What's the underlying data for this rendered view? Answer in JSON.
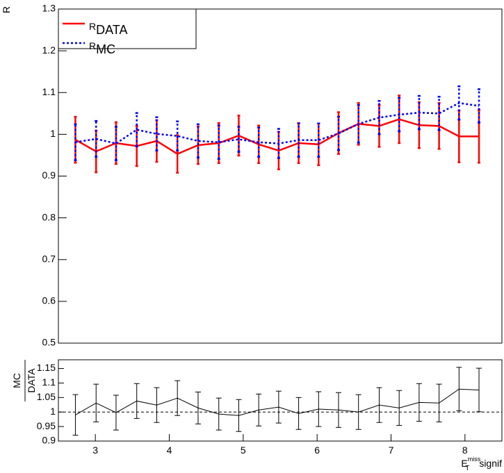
{
  "chart_data": [
    {
      "type": "line",
      "ylabel": "R",
      "x": [
        2.73,
        3.01,
        3.28,
        3.56,
        3.83,
        4.11,
        4.39,
        4.67,
        4.94,
        5.21,
        5.48,
        5.75,
        6.02,
        6.29,
        6.56,
        6.84,
        7.11,
        7.38,
        7.65,
        7.92,
        8.19
      ],
      "series": [
        {
          "name": "R",
          "name_subscript": "DATA",
          "color": "#ff0000",
          "dashed": false,
          "values": [
            0.987,
            0.959,
            0.979,
            0.972,
            0.984,
            0.953,
            0.974,
            0.979,
            0.997,
            0.976,
            0.961,
            0.979,
            0.976,
            1.003,
            1.025,
            1.02,
            1.036,
            1.022,
            1.02,
            0.995,
            0.995
          ],
          "errors": [
            0.055,
            0.05,
            0.05,
            0.048,
            0.05,
            0.045,
            0.045,
            0.048,
            0.048,
            0.045,
            0.045,
            0.048,
            0.05,
            0.05,
            0.05,
            0.05,
            0.057,
            0.055,
            0.055,
            0.062,
            0.063
          ]
        },
        {
          "name": "R",
          "name_subscript": "MC",
          "color": "#0000ff",
          "dashed": true,
          "values": [
            0.981,
            0.989,
            0.978,
            1.011,
            1.001,
            0.996,
            0.984,
            0.981,
            0.988,
            0.981,
            0.978,
            0.986,
            0.986,
            1.002,
            1.025,
            1.04,
            1.047,
            1.052,
            1.05,
            1.075,
            1.068
          ],
          "errors": [
            0.043,
            0.043,
            0.04,
            0.04,
            0.04,
            0.035,
            0.04,
            0.04,
            0.03,
            0.035,
            0.035,
            0.04,
            0.04,
            0.04,
            0.045,
            0.04,
            0.04,
            0.04,
            0.04,
            0.04,
            0.04
          ]
        }
      ],
      "xlim": [
        2.5,
        8.5
      ],
      "ylim": [
        0.5,
        1.3
      ],
      "yticks": [
        0.5,
        0.6,
        0.7,
        0.8,
        0.9,
        1,
        1.1,
        1.2,
        1.3
      ],
      "legend": "top-left"
    },
    {
      "type": "line",
      "ylabel_numerator": "MC",
      "ylabel_denominator": "DATA",
      "xlabel": "E",
      "xlabel_subscript": "T",
      "xlabel_superscript": "miss",
      "xlabel_suffix": "signif",
      "x": [
        2.73,
        3.01,
        3.28,
        3.56,
        3.83,
        4.11,
        4.39,
        4.67,
        4.94,
        5.21,
        5.48,
        5.75,
        6.02,
        6.29,
        6.56,
        6.84,
        7.11,
        7.38,
        7.65,
        7.92,
        8.19
      ],
      "series": [
        {
          "color": "#000000",
          "dashed": false,
          "values": [
            0.99,
            1.031,
            0.998,
            1.038,
            1.024,
            1.048,
            1.014,
            0.993,
            0.988,
            1.007,
            1.017,
            0.995,
            1.01,
            1.007,
            1.0,
            1.024,
            1.014,
            1.033,
            1.031,
            1.079,
            1.076
          ],
          "errors": [
            0.07,
            0.065,
            0.06,
            0.06,
            0.06,
            0.06,
            0.055,
            0.055,
            0.055,
            0.055,
            0.055,
            0.055,
            0.06,
            0.06,
            0.06,
            0.06,
            0.06,
            0.065,
            0.065,
            0.075,
            0.075
          ]
        }
      ],
      "reference_line": 1,
      "xlim": [
        2.5,
        8.5
      ],
      "ylim": [
        0.9,
        1.18
      ],
      "xticks": [
        3,
        4,
        5,
        6,
        7,
        8
      ],
      "yticks": [
        0.9,
        0.95,
        1,
        1.05,
        1.1,
        1.15
      ]
    }
  ]
}
